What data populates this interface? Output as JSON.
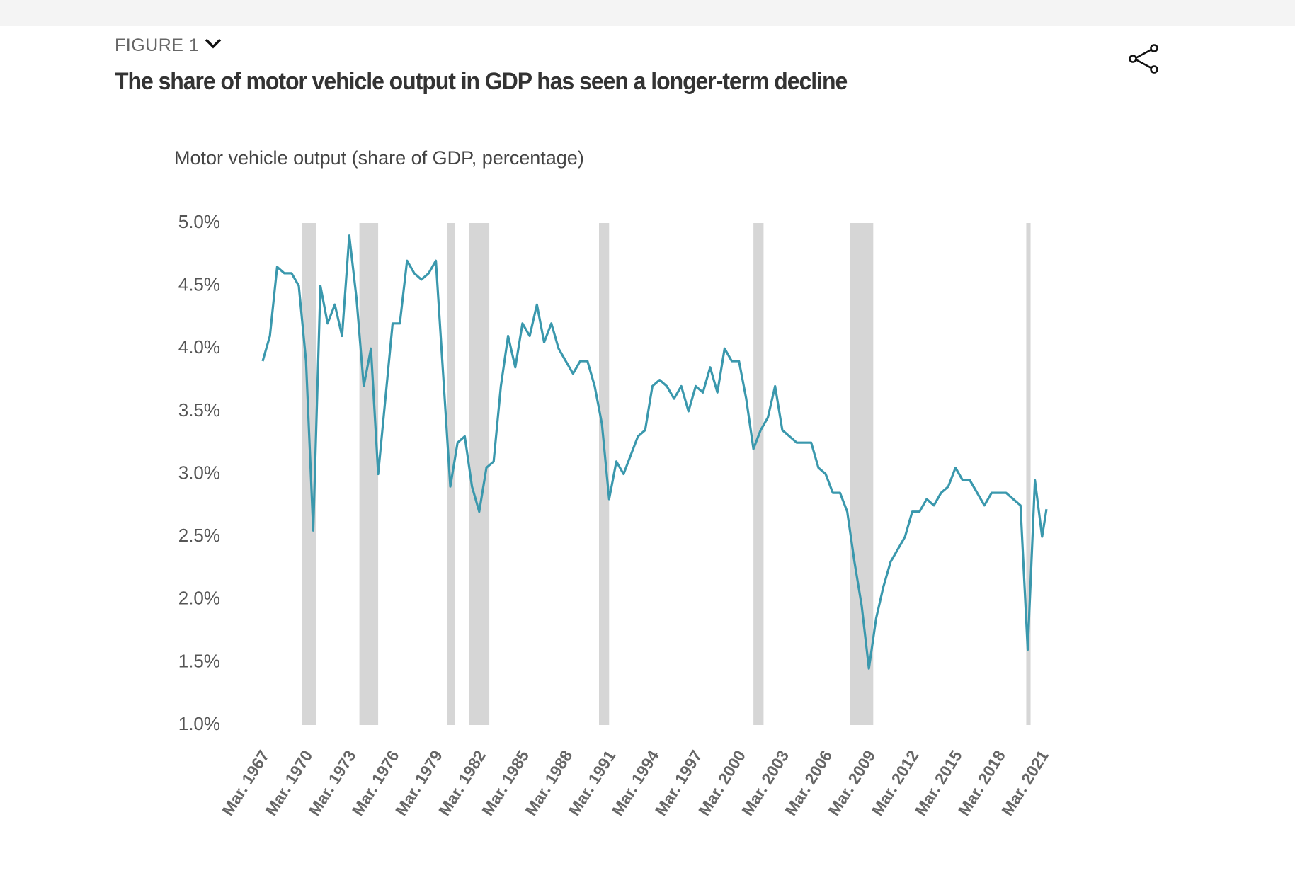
{
  "header": {
    "figure_label": "FIGURE 1",
    "title": "The share of motor vehicle output in GDP has seen a longer-term decline"
  },
  "chart_data": {
    "type": "line",
    "subtitle": "Motor vehicle output (share of GDP, percentage)",
    "x": [
      1967.2,
      1967.7,
      1968.2,
      1968.7,
      1969.2,
      1969.7,
      1970.2,
      1970.7,
      1971.2,
      1971.7,
      1972.2,
      1972.7,
      1973.2,
      1973.7,
      1974.2,
      1974.7,
      1975.2,
      1975.7,
      1976.2,
      1976.7,
      1977.2,
      1977.7,
      1978.2,
      1978.7,
      1979.2,
      1979.7,
      1980.2,
      1980.7,
      1981.2,
      1981.7,
      1982.2,
      1982.7,
      1983.2,
      1983.7,
      1984.2,
      1984.7,
      1985.2,
      1985.7,
      1986.2,
      1986.7,
      1987.2,
      1987.7,
      1988.2,
      1988.7,
      1989.2,
      1989.7,
      1990.2,
      1990.7,
      1991.2,
      1991.7,
      1992.2,
      1992.7,
      1993.2,
      1993.7,
      1994.2,
      1994.7,
      1995.2,
      1995.7,
      1996.2,
      1996.7,
      1997.2,
      1997.7,
      1998.2,
      1998.7,
      1999.2,
      1999.7,
      2000.2,
      2000.7,
      2001.2,
      2001.7,
      2002.2,
      2002.7,
      2003.2,
      2003.7,
      2004.2,
      2004.7,
      2005.2,
      2005.7,
      2006.2,
      2006.7,
      2007.2,
      2007.7,
      2008.2,
      2008.7,
      2009.2,
      2009.7,
      2010.2,
      2010.7,
      2011.2,
      2011.7,
      2012.2,
      2012.7,
      2013.2,
      2013.7,
      2014.2,
      2014.7,
      2015.2,
      2015.7,
      2016.2,
      2016.7,
      2017.2,
      2017.7,
      2018.2,
      2018.7,
      2019.2,
      2019.7,
      2020.2,
      2020.7,
      2021.2,
      2021.5
    ],
    "series": [
      {
        "name": "Motor vehicle output",
        "color": "#3a98ad",
        "values": [
          3.9,
          4.1,
          4.65,
          4.6,
          4.6,
          4.5,
          3.9,
          2.55,
          4.5,
          4.2,
          4.35,
          4.1,
          4.9,
          4.4,
          3.7,
          4.0,
          3.0,
          3.6,
          4.2,
          4.2,
          4.7,
          4.6,
          4.55,
          4.6,
          4.7,
          3.8,
          2.9,
          3.25,
          3.3,
          2.9,
          2.7,
          3.05,
          3.1,
          3.7,
          4.1,
          3.85,
          4.2,
          4.1,
          4.35,
          4.05,
          4.2,
          4.0,
          3.9,
          3.8,
          3.9,
          3.9,
          3.7,
          3.4,
          2.8,
          3.1,
          3.0,
          3.15,
          3.3,
          3.35,
          3.7,
          3.75,
          3.7,
          3.6,
          3.7,
          3.5,
          3.7,
          3.65,
          3.85,
          3.65,
          4.0,
          3.9,
          3.9,
          3.6,
          3.2,
          3.35,
          3.45,
          3.7,
          3.35,
          3.3,
          3.25,
          3.25,
          3.25,
          3.05,
          3.0,
          2.85,
          2.85,
          2.7,
          2.3,
          1.95,
          1.45,
          1.85,
          2.1,
          2.3,
          2.4,
          2.5,
          2.7,
          2.7,
          2.8,
          2.75,
          2.85,
          2.9,
          3.05,
          2.95,
          2.95,
          2.85,
          2.75,
          2.85,
          2.85,
          2.85,
          2.8,
          2.75,
          1.6,
          2.95,
          2.5,
          2.72
        ]
      }
    ],
    "recession_bands": [
      {
        "start": 1969.9,
        "end": 1970.9
      },
      {
        "start": 1973.9,
        "end": 1975.2
      },
      {
        "start": 1980.0,
        "end": 1980.5
      },
      {
        "start": 1981.5,
        "end": 1982.9
      },
      {
        "start": 1990.5,
        "end": 1991.2
      },
      {
        "start": 2001.2,
        "end": 2001.9
      },
      {
        "start": 2007.9,
        "end": 2009.5
      },
      {
        "start": 2020.1,
        "end": 2020.4
      }
    ],
    "band_color": "#d6d6d6",
    "xlim": [
      1967.2,
      2021.6
    ],
    "xticks": [
      {
        "value": 1967.2,
        "label": "Mar. 1967"
      },
      {
        "value": 1970.2,
        "label": "Mar. 1970"
      },
      {
        "value": 1973.2,
        "label": "Mar. 1973"
      },
      {
        "value": 1976.2,
        "label": "Mar. 1976"
      },
      {
        "value": 1979.2,
        "label": "Mar. 1979"
      },
      {
        "value": 1982.2,
        "label": "Mar. 1982"
      },
      {
        "value": 1985.2,
        "label": "Mar. 1985"
      },
      {
        "value": 1988.2,
        "label": "Mar. 1988"
      },
      {
        "value": 1991.2,
        "label": "Mar. 1991"
      },
      {
        "value": 1994.2,
        "label": "Mar. 1994"
      },
      {
        "value": 1997.2,
        "label": "Mar. 1997"
      },
      {
        "value": 2000.2,
        "label": "Mar. 2000"
      },
      {
        "value": 2003.2,
        "label": "Mar. 2003"
      },
      {
        "value": 2006.2,
        "label": "Mar. 2006"
      },
      {
        "value": 2009.2,
        "label": "Mar. 2009"
      },
      {
        "value": 2012.2,
        "label": "Mar. 2012"
      },
      {
        "value": 2015.2,
        "label": "Mar. 2015"
      },
      {
        "value": 2018.2,
        "label": "Mar. 2018"
      },
      {
        "value": 2021.2,
        "label": "Mar. 2021"
      }
    ],
    "ylim": [
      1,
      5
    ],
    "yticks": [
      {
        "value": 5,
        "label": "5.0%"
      },
      {
        "value": 4.5,
        "label": "4.5%"
      },
      {
        "value": 4,
        "label": "4.0%"
      },
      {
        "value": 3.5,
        "label": "3.5%"
      },
      {
        "value": 3,
        "label": "3.0%"
      },
      {
        "value": 2.5,
        "label": "2.5%"
      },
      {
        "value": 2,
        "label": "2.0%"
      },
      {
        "value": 1.5,
        "label": "1.5%"
      },
      {
        "value": 1,
        "label": "1.0%"
      }
    ],
    "grid": false
  }
}
